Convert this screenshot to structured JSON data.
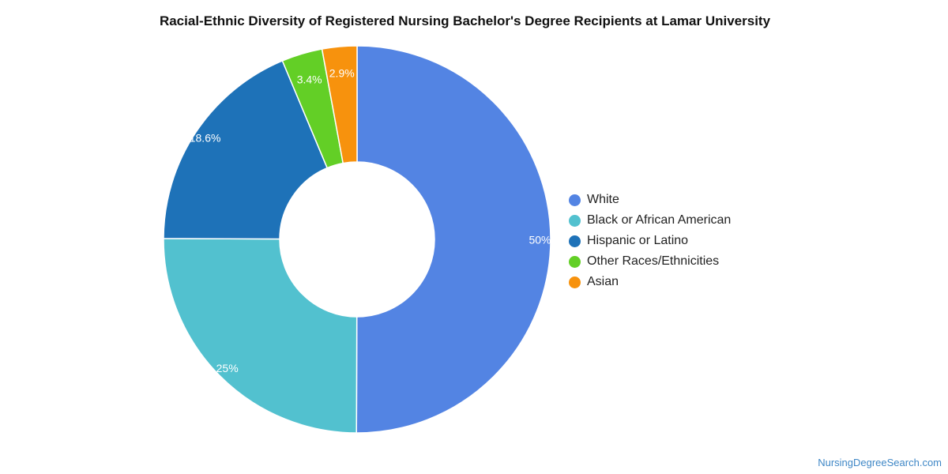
{
  "chart_data": {
    "type": "pie",
    "donut": true,
    "title": "Racial-Ethnic Diversity of Registered Nursing Bachelor's Degree Recipients at Lamar University",
    "legend_position": "right",
    "slices": [
      {
        "name": "White",
        "value": 50,
        "label": "50%",
        "color": "#5384e3"
      },
      {
        "name": "Black or African American",
        "value": 25,
        "label": "25%",
        "color": "#52c1cf"
      },
      {
        "name": "Hispanic or Latino",
        "value": 18.6,
        "label": "18.6%",
        "color": "#1e72b8"
      },
      {
        "name": "Other Races/Ethnicities",
        "value": 3.4,
        "label": "3.4%",
        "color": "#63cf26"
      },
      {
        "name": "Asian",
        "value": 2.9,
        "label": "2.9%",
        "color": "#f7920d"
      }
    ]
  },
  "watermark": "NursingDegreeSearch.com"
}
